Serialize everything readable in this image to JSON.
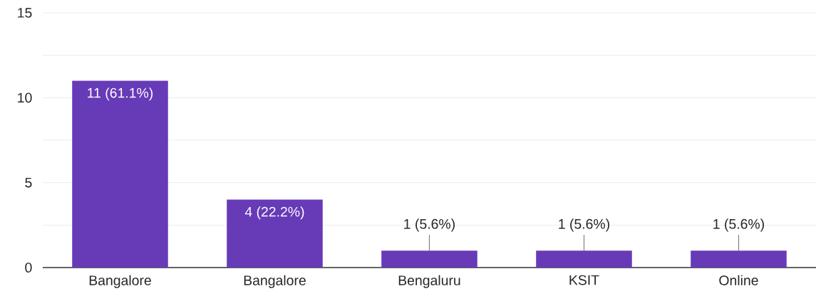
{
  "chart_data": {
    "type": "bar",
    "categories": [
      "Bangalore",
      "Bangalore",
      "Bengaluru",
      "KSIT",
      "Online"
    ],
    "values": [
      11,
      4,
      1,
      1,
      1
    ],
    "value_labels": [
      "11 (61.1%)",
      "4 (22.2%)",
      "1 (5.6%)",
      "1 (5.6%)",
      "1 (5.6%)"
    ],
    "color": "#673ab7",
    "ylim": [
      0,
      15
    ],
    "yticks": [
      0,
      {
        "value": 2.5,
        "label": null
      },
      5,
      {
        "value": 7.5,
        "label": null
      },
      10,
      {
        "value": 12.5,
        "label": null
      },
      15
    ],
    "grid": "y"
  }
}
